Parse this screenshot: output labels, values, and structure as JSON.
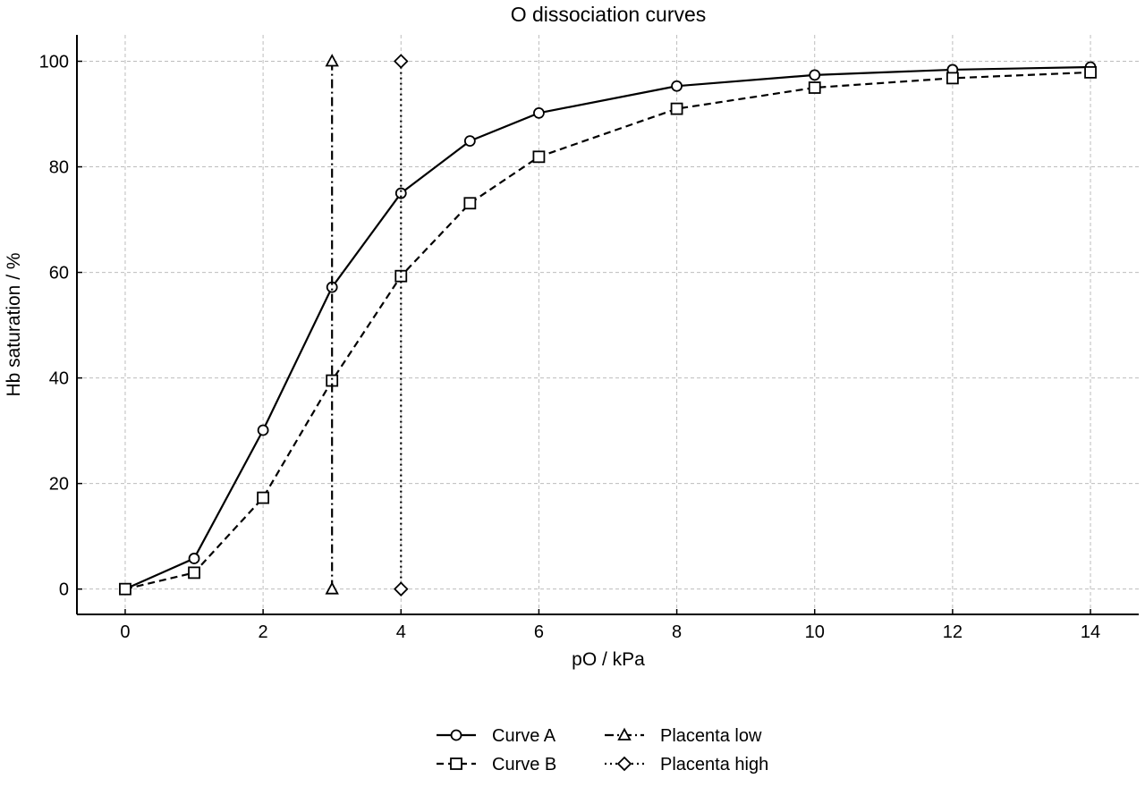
{
  "chart_data": {
    "type": "line",
    "title": "O  dissociation curves",
    "xlabel": "pO  / kPa",
    "ylabel": "Hb saturation / %",
    "xlim": [
      -0.7,
      14.7
    ],
    "ylim": [
      -4.8,
      105
    ],
    "xticks": [
      0,
      2,
      4,
      6,
      8,
      10,
      12,
      14
    ],
    "yticks": [
      0,
      20,
      40,
      60,
      80,
      100
    ],
    "grid": true,
    "legend_position": "bottom-center",
    "series": [
      {
        "name": "Curve A",
        "style": "solid",
        "marker": "circle",
        "x": [
          0,
          1,
          2,
          3,
          4,
          5,
          6,
          8,
          10,
          12,
          14
        ],
        "y": [
          0,
          5.8,
          30.1,
          57.2,
          75.0,
          84.9,
          90.2,
          95.3,
          97.4,
          98.4,
          98.9
        ]
      },
      {
        "name": "Curve B",
        "style": "dashed",
        "marker": "square",
        "x": [
          0,
          1,
          2,
          3,
          4,
          5,
          6,
          8,
          10,
          12,
          14
        ],
        "y": [
          0,
          3.1,
          17.3,
          39.5,
          59.3,
          73.1,
          81.9,
          91.0,
          95.0,
          96.8,
          97.9
        ]
      },
      {
        "name": "Placenta low",
        "style": "dashdot",
        "marker": "triangle",
        "x": [
          3,
          3
        ],
        "y": [
          0,
          100
        ]
      },
      {
        "name": "Placenta high",
        "style": "dotted",
        "marker": "diamond",
        "x": [
          4,
          4
        ],
        "y": [
          0,
          100
        ]
      }
    ]
  }
}
